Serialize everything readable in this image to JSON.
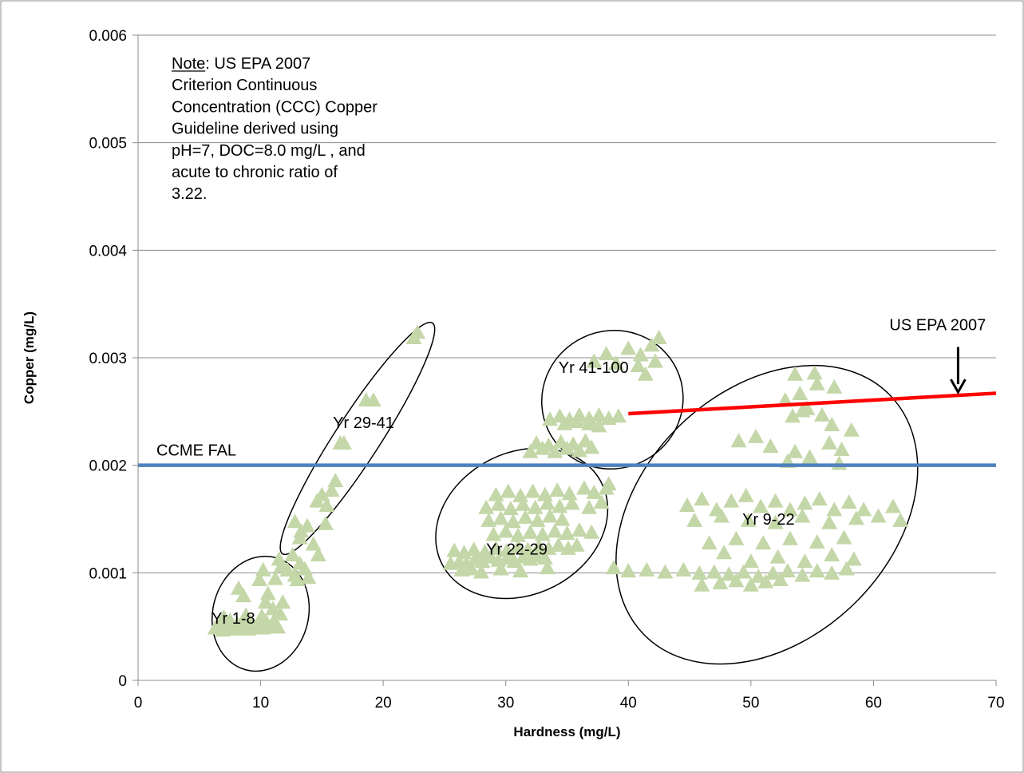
{
  "chart_data": {
    "type": "scatter",
    "title": "",
    "xlabel": "Hardness (mg/L)",
    "ylabel": "Copper (mg/L)",
    "xlim": [
      0,
      70
    ],
    "ylim": [
      0,
      0.006
    ],
    "x_ticks": [
      0,
      10,
      20,
      30,
      40,
      50,
      60,
      70
    ],
    "y_ticks": [
      0,
      0.001,
      0.002,
      0.003,
      0.004,
      0.005,
      0.006
    ],
    "x_tick_labels": [
      "0",
      "10",
      "20",
      "30",
      "40",
      "50",
      "60",
      "70"
    ],
    "y_tick_labels": [
      "0",
      "0.001",
      "0.002",
      "0.003",
      "0.004",
      "0.005",
      "0.006"
    ],
    "grid": "horizontal",
    "marker_color": "#c4d7a8",
    "note": {
      "label": "Note",
      "lines": [
        ":  US EPA 2007",
        "Criterion Continuous",
        "Concentration (CCC) Copper",
        "Guideline  derived using",
        "pH=7, DOC=8.0 mg/L , and",
        "acute to chronic ratio of",
        "3.22."
      ]
    },
    "reference_lines": [
      {
        "label": "CCME FAL",
        "color": "#4f81bd",
        "x": [
          0,
          70
        ],
        "y": [
          0.002,
          0.002
        ]
      },
      {
        "label": "US EPA 2007",
        "color": "#ff0000",
        "x": [
          40,
          70
        ],
        "y": [
          0.00248,
          0.00267
        ]
      }
    ],
    "groups": [
      {
        "label": "Yr 1-8",
        "label_at": [
          6.0,
          0.00058
        ],
        "ellipse": {
          "cx": 10.0,
          "cy": 0.00062,
          "rx": 3.9,
          "ry": 0.00054,
          "angle": 15
        }
      },
      {
        "label": "Yr 29-41",
        "label_at": [
          15.9,
          0.0024
        ],
        "ellipse": {
          "cx": 17.9,
          "cy": 0.00225,
          "rx": 1.82,
          "ry": 0.00128,
          "angle": 33
        }
      },
      {
        "label": "Yr 41-100",
        "label_at": [
          34.3,
          0.00291
        ],
        "ellipse": {
          "cx": 38.7,
          "cy": 0.00261,
          "rx": 5.8,
          "ry": 0.00064,
          "angle": -25
        }
      },
      {
        "label": "Yr 22-29",
        "label_at": [
          28.4,
          0.00122
        ],
        "ellipse": {
          "cx": 31.3,
          "cy": 0.00146,
          "rx": 7.3,
          "ry": 0.00066,
          "angle": -27
        }
      },
      {
        "label": "Yr 9-22",
        "label_at": [
          49.3,
          0.0015
        ],
        "ellipse": {
          "cx": 51.3,
          "cy": 0.00154,
          "rx": 14.0,
          "ry": 0.00116,
          "angle": -44
        }
      }
    ],
    "series": [
      {
        "name": "",
        "points": [
          [
            6.3,
            0.00048
          ],
          [
            6.6,
            0.00052
          ],
          [
            6.9,
            0.00046
          ],
          [
            7.2,
            0.0005
          ],
          [
            7.5,
            0.00055
          ],
          [
            7.8,
            0.00047
          ],
          [
            8.1,
            0.00052
          ],
          [
            8.4,
            0.00048
          ],
          [
            8.7,
            0.00054
          ],
          [
            9.0,
            0.00047
          ],
          [
            9.3,
            0.00052
          ],
          [
            9.6,
            0.00049
          ],
          [
            9.9,
            0.00055
          ],
          [
            10.2,
            0.00048
          ],
          [
            10.5,
            0.00053
          ],
          [
            10.8,
            0.00049
          ],
          [
            11.1,
            0.00055
          ],
          [
            11.4,
            0.00049
          ],
          [
            7.0,
            0.00058
          ],
          [
            8.8,
            0.0006
          ],
          [
            10.1,
            0.00059
          ],
          [
            11.6,
            0.00061
          ],
          [
            11.0,
            0.00066
          ],
          [
            10.4,
            0.00072
          ],
          [
            11.8,
            0.00072
          ],
          [
            10.6,
            0.0008
          ],
          [
            8.2,
            0.00085
          ],
          [
            8.6,
            0.00078
          ],
          [
            9.9,
            0.00093
          ],
          [
            10.2,
            0.00102
          ],
          [
            11.2,
            0.00094
          ],
          [
            11.7,
            0.00106
          ],
          [
            11.5,
            0.00112
          ],
          [
            12.2,
            0.00102
          ],
          [
            12.8,
            0.00097
          ],
          [
            13.2,
            0.00108
          ],
          [
            13.6,
            0.00103
          ],
          [
            13.0,
            0.00093
          ],
          [
            13.9,
            0.00095
          ],
          [
            12.6,
            0.00116
          ],
          [
            12.8,
            0.00147
          ],
          [
            13.3,
            0.00138
          ],
          [
            13.8,
            0.00143
          ],
          [
            13.2,
            0.00132
          ],
          [
            14.3,
            0.00126
          ],
          [
            14.7,
            0.00116
          ],
          [
            14.6,
            0.00166
          ],
          [
            15.0,
            0.00172
          ],
          [
            15.4,
            0.00162
          ],
          [
            15.3,
            0.00145
          ],
          [
            15.8,
            0.00176
          ],
          [
            16.1,
            0.00185
          ],
          [
            16.5,
            0.0022
          ],
          [
            16.8,
            0.0022
          ],
          [
            18.6,
            0.0026
          ],
          [
            19.2,
            0.0026
          ],
          [
            22.5,
            0.00318
          ],
          [
            22.8,
            0.00323
          ],
          [
            25.5,
            0.00108
          ],
          [
            26.2,
            0.0011
          ],
          [
            26.8,
            0.00108
          ],
          [
            27.5,
            0.00112
          ],
          [
            28.1,
            0.0011
          ],
          [
            28.8,
            0.00114
          ],
          [
            29.4,
            0.00111
          ],
          [
            30.1,
            0.00113
          ],
          [
            30.7,
            0.0011
          ],
          [
            31.4,
            0.00114
          ],
          [
            32.0,
            0.00112
          ],
          [
            32.6,
            0.00115
          ],
          [
            33.2,
            0.00113
          ],
          [
            25.8,
            0.0012
          ],
          [
            26.6,
            0.00118
          ],
          [
            27.4,
            0.00121
          ],
          [
            28.3,
            0.00119
          ],
          [
            29.2,
            0.00122
          ],
          [
            30.1,
            0.0012
          ],
          [
            31.0,
            0.00123
          ],
          [
            31.8,
            0.00121
          ],
          [
            32.7,
            0.00124
          ],
          [
            33.5,
            0.00122
          ],
          [
            34.3,
            0.00125
          ],
          [
            35.1,
            0.00122
          ],
          [
            35.8,
            0.00125
          ],
          [
            26.4,
            0.00102
          ],
          [
            27.2,
            0.00103
          ],
          [
            28.0,
            0.001
          ],
          [
            29.6,
            0.00103
          ],
          [
            31.2,
            0.00101
          ],
          [
            33.4,
            0.00104
          ],
          [
            29.0,
            0.00135
          ],
          [
            30.0,
            0.00138
          ],
          [
            31.0,
            0.00134
          ],
          [
            32.0,
            0.00137
          ],
          [
            33.0,
            0.00135
          ],
          [
            34.0,
            0.00138
          ],
          [
            35.0,
            0.00136
          ],
          [
            36.0,
            0.00139
          ],
          [
            37.0,
            0.00137
          ],
          [
            28.6,
            0.00148
          ],
          [
            29.6,
            0.0015
          ],
          [
            30.6,
            0.00147
          ],
          [
            31.6,
            0.00151
          ],
          [
            32.6,
            0.00148
          ],
          [
            33.6,
            0.00152
          ],
          [
            34.6,
            0.00149
          ],
          [
            28.4,
            0.0016
          ],
          [
            29.4,
            0.00163
          ],
          [
            30.4,
            0.00159
          ],
          [
            31.4,
            0.00163
          ],
          [
            32.4,
            0.0016
          ],
          [
            33.4,
            0.00164
          ],
          [
            34.4,
            0.00161
          ],
          [
            35.4,
            0.00164
          ],
          [
            29.2,
            0.00172
          ],
          [
            30.2,
            0.00175
          ],
          [
            31.2,
            0.00171
          ],
          [
            32.2,
            0.00175
          ],
          [
            33.2,
            0.00172
          ],
          [
            34.2,
            0.00176
          ],
          [
            35.2,
            0.00173
          ],
          [
            36.4,
            0.00178
          ],
          [
            37.2,
            0.00174
          ],
          [
            38.2,
            0.00178
          ],
          [
            37.8,
            0.00165
          ],
          [
            36.8,
            0.0016
          ],
          [
            38.4,
            0.00182
          ],
          [
            32.0,
            0.00212
          ],
          [
            33.0,
            0.00215
          ],
          [
            34.0,
            0.00212
          ],
          [
            35.0,
            0.00215
          ],
          [
            36.0,
            0.00213
          ],
          [
            37.0,
            0.00216
          ],
          [
            32.5,
            0.0022
          ],
          [
            33.5,
            0.00218
          ],
          [
            34.5,
            0.00221
          ],
          [
            35.5,
            0.00219
          ],
          [
            36.5,
            0.00222
          ],
          [
            33.6,
            0.00242
          ],
          [
            34.4,
            0.00245
          ],
          [
            35.2,
            0.00242
          ],
          [
            36.0,
            0.00246
          ],
          [
            36.8,
            0.00243
          ],
          [
            37.6,
            0.00246
          ],
          [
            38.4,
            0.00243
          ],
          [
            39.2,
            0.00245
          ],
          [
            34.8,
            0.00238
          ],
          [
            35.8,
            0.0024
          ],
          [
            36.8,
            0.00238
          ],
          [
            37.6,
            0.00236
          ],
          [
            37.2,
            0.00296
          ],
          [
            38.2,
            0.00303
          ],
          [
            39.0,
            0.00294
          ],
          [
            40.0,
            0.00308
          ],
          [
            40.8,
            0.00292
          ],
          [
            41.4,
            0.00284
          ],
          [
            41.9,
            0.00311
          ],
          [
            42.2,
            0.00296
          ],
          [
            42.5,
            0.00318
          ],
          [
            41.0,
            0.00302
          ],
          [
            38.8,
            0.00104
          ],
          [
            40.0,
            0.00101
          ],
          [
            41.5,
            0.00102
          ],
          [
            43.0,
            0.001
          ],
          [
            44.5,
            0.00102
          ],
          [
            45.8,
            0.00099
          ],
          [
            47.0,
            0.001
          ],
          [
            48.2,
            0.00098
          ],
          [
            49.4,
            0.001
          ],
          [
            50.6,
            0.00096
          ],
          [
            51.8,
            0.00099
          ],
          [
            53.0,
            0.00101
          ],
          [
            54.2,
            0.00097
          ],
          [
            55.4,
            0.00101
          ],
          [
            56.6,
            0.00099
          ],
          [
            57.8,
            0.00103
          ],
          [
            46.0,
            0.00088
          ],
          [
            47.5,
            0.0009
          ],
          [
            48.8,
            0.00092
          ],
          [
            50.0,
            0.00088
          ],
          [
            51.2,
            0.00091
          ],
          [
            52.4,
            0.00093
          ],
          [
            44.8,
            0.00162
          ],
          [
            46.0,
            0.00168
          ],
          [
            47.2,
            0.00158
          ],
          [
            48.4,
            0.00166
          ],
          [
            49.6,
            0.00171
          ],
          [
            50.8,
            0.00161
          ],
          [
            52.0,
            0.00166
          ],
          [
            53.2,
            0.00158
          ],
          [
            54.4,
            0.00164
          ],
          [
            55.6,
            0.00168
          ],
          [
            56.8,
            0.00158
          ],
          [
            58.0,
            0.00165
          ],
          [
            59.2,
            0.00158
          ],
          [
            60.4,
            0.00152
          ],
          [
            61.6,
            0.00161
          ],
          [
            62.2,
            0.00148
          ],
          [
            45.4,
            0.00148
          ],
          [
            47.6,
            0.00152
          ],
          [
            49.8,
            0.00148
          ],
          [
            52.0,
            0.00146
          ],
          [
            54.2,
            0.00152
          ],
          [
            56.4,
            0.00146
          ],
          [
            58.6,
            0.0015
          ],
          [
            46.6,
            0.00127
          ],
          [
            48.8,
            0.00131
          ],
          [
            51.0,
            0.00127
          ],
          [
            53.2,
            0.00131
          ],
          [
            55.4,
            0.00128
          ],
          [
            57.6,
            0.00132
          ],
          [
            47.8,
            0.00118
          ],
          [
            50.0,
            0.0011
          ],
          [
            52.2,
            0.00114
          ],
          [
            54.4,
            0.0011
          ],
          [
            56.6,
            0.00116
          ],
          [
            58.4,
            0.00112
          ],
          [
            49.0,
            0.00222
          ],
          [
            50.4,
            0.00226
          ],
          [
            51.6,
            0.00217
          ],
          [
            53.0,
            0.00203
          ],
          [
            53.6,
            0.00212
          ],
          [
            54.8,
            0.00207
          ],
          [
            56.4,
            0.0022
          ],
          [
            57.4,
            0.00214
          ],
          [
            58.2,
            0.00232
          ],
          [
            57.2,
            0.00201
          ],
          [
            53.4,
            0.00245
          ],
          [
            54.6,
            0.00252
          ],
          [
            55.8,
            0.00246
          ],
          [
            56.6,
            0.00237
          ],
          [
            52.8,
            0.0026
          ],
          [
            54.0,
            0.00266
          ],
          [
            55.4,
            0.00275
          ],
          [
            56.8,
            0.00272
          ],
          [
            53.6,
            0.00284
          ],
          [
            55.2,
            0.00285
          ],
          [
            54.2,
            0.0025
          ]
        ]
      }
    ]
  }
}
